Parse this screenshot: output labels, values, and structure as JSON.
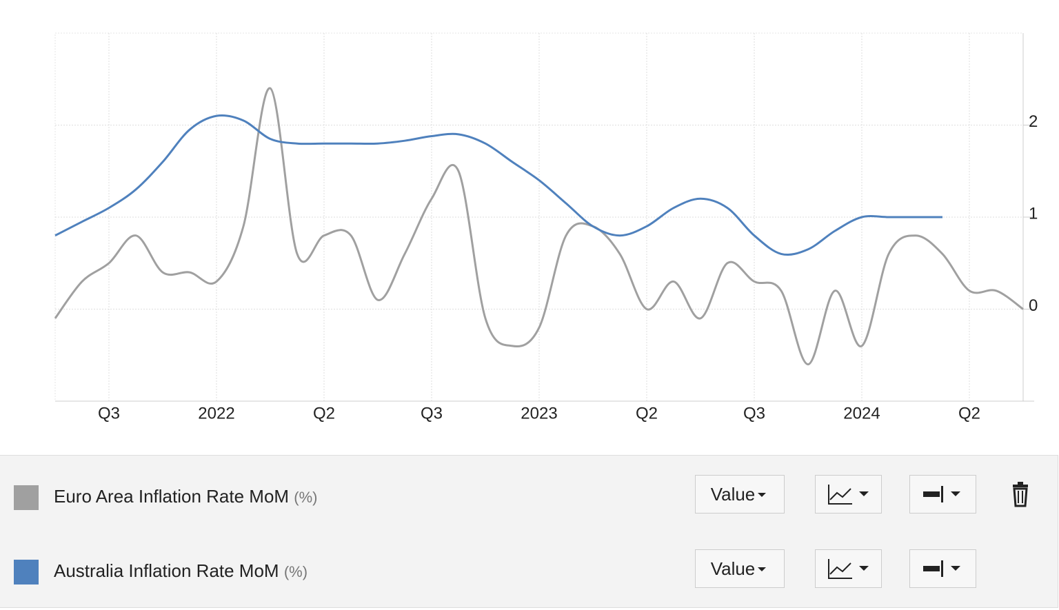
{
  "chart_data": {
    "type": "line",
    "categories": [
      null,
      null,
      "Q3",
      null,
      null,
      null,
      "2022",
      null,
      null,
      null,
      "Q2",
      null,
      null,
      null,
      "Q3",
      null,
      null,
      null,
      "2023",
      null,
      null,
      null,
      "Q2",
      null,
      null,
      null,
      "Q3",
      null,
      null,
      null,
      "2024",
      null,
      null,
      null,
      "Q2",
      null,
      null
    ],
    "series": [
      {
        "name": "Euro Area Inflation Rate MoM",
        "unit": "(%)",
        "mode": "Value",
        "color": "#a0a0a0",
        "values": [
          -0.1,
          0.3,
          0.5,
          0.8,
          0.4,
          0.4,
          0.3,
          0.9,
          2.4,
          0.6,
          0.8,
          0.8,
          0.1,
          0.6,
          1.2,
          1.5,
          -0.1,
          -0.4,
          -0.2,
          0.8,
          0.9,
          0.6,
          0.0,
          0.3,
          -0.1,
          0.5,
          0.3,
          0.2,
          -0.6,
          0.2,
          -0.4,
          0.6,
          0.8,
          0.6,
          0.2,
          0.2,
          0.0
        ]
      },
      {
        "name": "Australia Inflation Rate MoM",
        "unit": "(%)",
        "mode": "Value",
        "color": "#4f81bd",
        "values": [
          0.8,
          0.95,
          1.1,
          1.3,
          1.6,
          1.95,
          2.1,
          2.05,
          1.85,
          1.8,
          1.8,
          1.8,
          1.8,
          1.83,
          1.88,
          1.9,
          1.8,
          1.6,
          1.4,
          1.15,
          0.9,
          0.8,
          0.9,
          1.1,
          1.2,
          1.1,
          0.8,
          0.6,
          0.65,
          0.85,
          1.0,
          1.0,
          1.0,
          1.0,
          null,
          null,
          null
        ]
      }
    ],
    "ylim": [
      -1,
      3
    ],
    "yticks": [
      0,
      1,
      2
    ],
    "grid": true
  }
}
